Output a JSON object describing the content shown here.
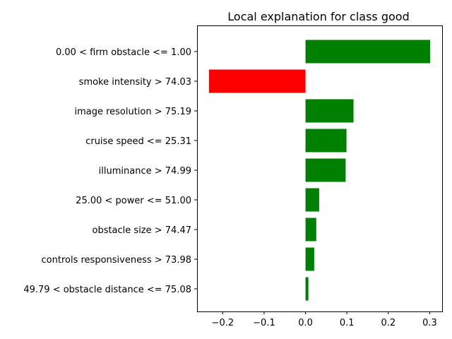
{
  "chart_data": {
    "type": "bar",
    "orientation": "horizontal",
    "title": "Local explanation for class good",
    "xlabel": "",
    "ylabel": "",
    "xlim": [
      -0.262,
      0.33
    ],
    "xticks": [
      -0.2,
      -0.1,
      0.0,
      0.1,
      0.2,
      0.3
    ],
    "xtick_labels": [
      "−0.2",
      "−0.1",
      "0.0",
      "0.1",
      "0.2",
      "0.3"
    ],
    "grid": false,
    "legend": "none",
    "positive_color": "#008000",
    "negative_color": "#ff0000",
    "categories": [
      "0.00 < firm obstacle <= 1.00",
      "smoke intensity > 74.03",
      "image resolution > 75.19",
      "cruise speed <= 25.31",
      "illuminance > 74.99",
      "25.00 < power <= 51.00",
      "obstacle size > 74.47",
      "controls responsiveness > 73.98",
      "49.79 < obstacle distance <= 75.08"
    ],
    "values": [
      0.301,
      -0.233,
      0.116,
      0.099,
      0.097,
      0.033,
      0.026,
      0.021,
      0.007
    ]
  }
}
